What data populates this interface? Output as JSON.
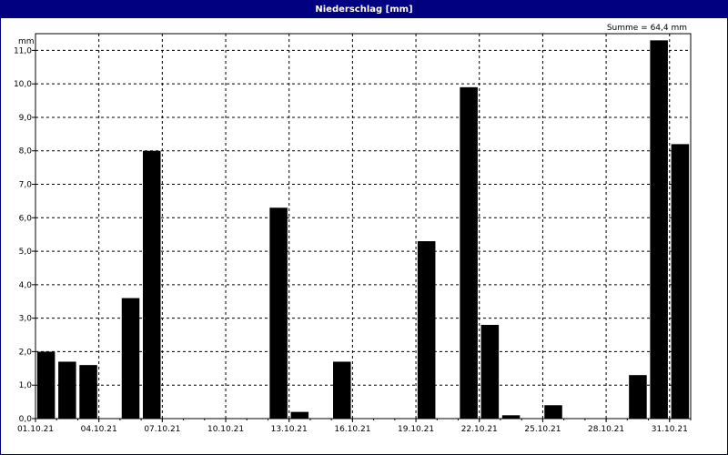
{
  "window": {
    "title": "Niederschlag [mm]"
  },
  "chart_data": {
    "type": "bar",
    "ylabel": "mm",
    "annotation": "Summe = 64,4 mm",
    "ylim": [
      0,
      11.5
    ],
    "yticks": [
      "0,0",
      "1,0",
      "2,0",
      "3,0",
      "4,0",
      "5,0",
      "6,0",
      "7,0",
      "8,0",
      "9,0",
      "10,0",
      "11,0"
    ],
    "xticks": [
      "01.10.21",
      "04.10.21",
      "07.10.21",
      "10.10.21",
      "13.10.21",
      "16.10.21",
      "19.10.21",
      "22.10.21",
      "25.10.21",
      "28.10.21",
      "31.10.21"
    ],
    "xtick_positions": [
      1,
      4,
      7,
      10,
      13,
      16,
      19,
      22,
      25,
      28,
      31
    ],
    "grid": true,
    "colors": {
      "bar": "#000000",
      "grid": "#000000",
      "titlebar": "#000080"
    },
    "categories": [
      "01.10.21",
      "02.10.21",
      "03.10.21",
      "04.10.21",
      "05.10.21",
      "06.10.21",
      "07.10.21",
      "08.10.21",
      "09.10.21",
      "10.10.21",
      "11.10.21",
      "12.10.21",
      "13.10.21",
      "14.10.21",
      "15.10.21",
      "16.10.21",
      "17.10.21",
      "18.10.21",
      "19.10.21",
      "20.10.21",
      "21.10.21",
      "22.10.21",
      "23.10.21",
      "24.10.21",
      "25.10.21",
      "26.10.21",
      "27.10.21",
      "28.10.21",
      "29.10.21",
      "30.10.21",
      "31.10.21"
    ],
    "values": [
      2.0,
      1.7,
      1.6,
      0,
      3.6,
      8.0,
      0,
      0,
      0,
      0,
      0,
      6.3,
      0.2,
      0,
      1.7,
      0,
      0,
      0,
      5.3,
      0,
      9.9,
      2.8,
      0.1,
      0,
      0.4,
      0,
      0,
      0,
      1.3,
      11.3,
      8.2
    ]
  }
}
